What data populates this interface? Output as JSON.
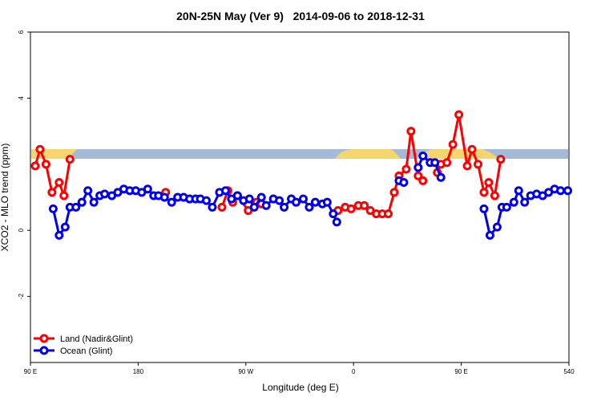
{
  "chart_data": {
    "type": "line",
    "title": "20N-25N May (Ver 9)   2014-09-06 to 2018-12-31",
    "x_label": "Longitude (deg E)",
    "y_label": "XCO2 - MLO trend (ppm)",
    "xlim": [
      90,
      540
    ],
    "xticks": [
      {
        "value": 90,
        "label": "90 E"
      },
      180,
      {
        "value": 270,
        "label": "90 W"
      },
      {
        "value": 360,
        "label": "0"
      },
      {
        "value": 450,
        "label": "90 E"
      },
      540
    ],
    "ylim": [
      -4,
      6
    ],
    "yticks": [
      -2,
      0,
      4,
      6
    ],
    "legend": "bottom-left",
    "series": [
      {
        "name": "Land (Nadir&Glint)",
        "color": "#ff0000",
        "x": [
          94,
          98,
          103,
          108,
          114,
          118,
          123,
          null,
          203,
          null,
          250,
          255,
          259,
          263,
          272,
          279,
          283,
          null,
          347,
          353,
          358,
          364,
          369,
          374,
          379,
          384,
          389,
          394,
          398,
          404,
          408,
          414,
          418,
          null,
          430,
          433,
          438,
          443,
          448,
          455,
          459,
          464,
          469,
          473,
          478,
          483
        ],
        "values": [
          1.95,
          2.45,
          2.0,
          1.15,
          1.45,
          1.05,
          2.15,
          null,
          1.15,
          null,
          0.7,
          1.2,
          0.85,
          1.05,
          0.6,
          0.85,
          0.8,
          null,
          0.6,
          0.7,
          0.65,
          0.75,
          0.75,
          0.6,
          0.5,
          0.5,
          0.5,
          1.15,
          1.65,
          1.85,
          3.0,
          1.65,
          1.5,
          null,
          1.75,
          2.0,
          2.05,
          2.6,
          3.5,
          1.95,
          2.45,
          2.0,
          1.15,
          1.45,
          1.05,
          2.15
        ]
      },
      {
        "name": "Ocean (Glint)",
        "color": "#0000ee",
        "x": [
          109,
          114,
          119,
          123,
          128,
          133,
          138,
          143,
          148,
          152,
          158,
          163,
          168,
          173,
          178,
          183,
          188,
          193,
          197,
          202,
          208,
          213,
          218,
          223,
          228,
          232,
          237,
          242,
          248,
          253,
          258,
          263,
          268,
          273,
          277,
          283,
          287,
          293,
          298,
          302,
          308,
          312,
          318,
          323,
          328,
          334,
          338,
          343,
          346,
          null,
          398,
          402,
          null,
          414,
          418,
          424,
          428,
          433,
          null,
          469,
          474,
          480,
          484,
          488,
          494,
          498,
          503,
          508,
          513,
          518,
          523,
          528,
          533,
          539
        ],
        "values": [
          0.65,
          -0.15,
          0.1,
          0.7,
          0.7,
          0.85,
          1.2,
          0.85,
          1.05,
          1.1,
          1.05,
          1.15,
          1.25,
          1.2,
          1.2,
          1.15,
          1.25,
          1.05,
          1.05,
          1.0,
          0.85,
          1.0,
          1.0,
          0.95,
          0.95,
          0.95,
          0.9,
          0.7,
          1.15,
          1.2,
          0.95,
          1.05,
          0.9,
          0.95,
          0.7,
          1.0,
          0.75,
          0.95,
          0.9,
          0.7,
          0.95,
          0.85,
          0.95,
          0.7,
          0.85,
          0.8,
          0.85,
          0.5,
          0.25,
          null,
          1.5,
          1.45,
          null,
          1.9,
          2.25,
          2.05,
          2.05,
          1.6,
          null,
          0.65,
          -0.15,
          0.1,
          0.7,
          0.7,
          0.85,
          1.2,
          0.85,
          1.05,
          1.1,
          1.05,
          1.15,
          1.25,
          1.2,
          1.2
        ]
      }
    ]
  }
}
